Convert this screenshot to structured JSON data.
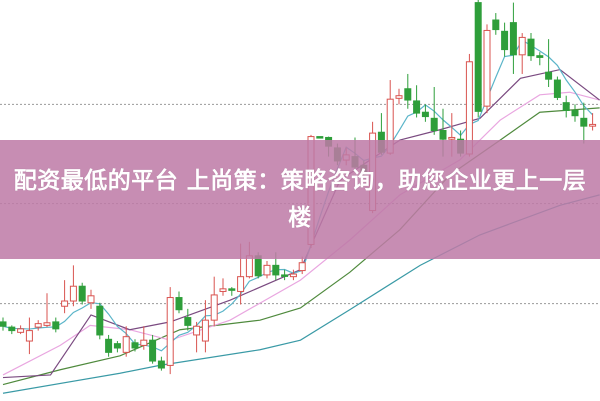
{
  "headline": "配资最低的平台 上尚策：策略咨询，助您企业更上一层楼",
  "chart_data": {
    "type": "candlestick",
    "ylim": [
      0,
      460
    ],
    "grid": "horizontal dotted",
    "colors": {
      "up": "#d9534f",
      "down": "#2e9e3a",
      "grid": "#9a9a9a",
      "banner": "#be7aa6",
      "ma5": "#5bb5c9",
      "ma10": "#7a4a80",
      "ma20": "#e9a6e0",
      "ma30": "#4f8a3d",
      "ma60": "#3a9aa6"
    },
    "candles_ochl": [
      [
        90,
        85,
        95,
        80
      ],
      [
        84,
        80,
        86,
        76
      ],
      [
        78,
        82,
        86,
        76
      ],
      [
        68,
        80,
        95,
        53
      ],
      [
        84,
        88,
        92,
        80
      ],
      [
        86,
        89,
        123,
        84
      ],
      [
        90,
        82,
        95,
        78
      ],
      [
        108,
        114,
        138,
        100
      ],
      [
        114,
        131,
        155,
        108
      ],
      [
        131,
        114,
        135,
        110
      ],
      [
        112,
        120,
        127,
        105
      ],
      [
        108,
        75,
        112,
        70
      ],
      [
        70,
        55,
        75,
        50
      ],
      [
        65,
        60,
        68,
        55
      ],
      [
        55,
        73,
        85,
        50
      ],
      [
        66,
        60,
        70,
        56
      ],
      [
        63,
        69,
        85,
        58
      ],
      [
        69,
        45,
        75,
        42
      ],
      [
        45,
        37,
        50,
        34
      ],
      [
        40,
        118,
        130,
        30
      ],
      [
        118,
        104,
        125,
        100
      ],
      [
        95,
        86,
        105,
        80
      ],
      [
        75,
        85,
        90,
        55
      ],
      [
        68,
        92,
        115,
        55
      ],
      [
        92,
        121,
        142,
        85
      ],
      [
        125,
        128,
        140,
        120
      ],
      [
        128,
        127,
        130,
        120
      ],
      [
        125,
        142,
        180,
        110
      ],
      [
        142,
        166,
        182,
        140
      ],
      [
        166,
        143,
        170,
        140
      ],
      [
        144,
        155,
        160,
        140
      ],
      [
        155,
        144,
        170,
        138
      ],
      [
        144,
        143,
        150,
        138
      ],
      [
        142,
        145,
        150,
        138
      ],
      [
        149,
        158,
        165,
        145
      ],
      [
        179,
        303,
        305,
        175
      ],
      [
        303,
        302,
        303,
        302
      ],
      [
        302,
        292,
        303,
        280
      ],
      [
        290,
        275,
        295,
        270
      ],
      [
        276,
        282,
        290,
        270
      ],
      [
        280,
        268,
        302,
        265
      ],
      [
        270,
        260,
        275,
        255
      ],
      [
        218,
        307,
        320,
        215
      ],
      [
        308,
        285,
        330,
        282
      ],
      [
        284,
        346,
        368,
        282
      ],
      [
        347,
        350,
        358,
        340
      ],
      [
        358,
        345,
        375,
        335
      ],
      [
        344,
        330,
        362,
        325
      ],
      [
        331,
        326,
        340,
        320
      ],
      [
        324,
        310,
        360,
        305
      ],
      [
        310,
        300,
        335,
        280
      ],
      [
        300,
        302,
        330,
        280
      ],
      [
        300,
        284,
        310,
        280
      ],
      [
        283,
        389,
        398,
        280
      ],
      [
        457,
        332,
        460,
        325
      ],
      [
        338,
        425,
        432,
        330
      ],
      [
        437,
        426,
        445,
        420
      ],
      [
        424,
        403,
        434,
        395
      ],
      [
        434,
        397,
        457,
        375
      ],
      [
        397,
        417,
        422,
        375
      ],
      [
        415,
        396,
        422,
        390
      ],
      [
        396,
        394,
        400,
        385
      ],
      [
        377,
        369,
        415,
        360
      ],
      [
        368,
        348,
        372,
        345
      ],
      [
        342,
        333,
        350,
        325
      ],
      [
        333,
        327,
        340,
        320
      ],
      [
        324,
        315,
        342,
        295
      ],
      [
        315,
        317,
        330,
        310
      ]
    ],
    "moving_averages": {
      "ma10": [
        [
          0,
          26
        ],
        [
          5.4,
          29
        ],
        [
          10,
          98
        ],
        [
          14.4,
          81
        ],
        [
          19,
          90
        ],
        [
          25.8,
          115
        ],
        [
          33.8,
          150
        ],
        [
          38.3,
          253
        ],
        [
          45.1,
          299
        ],
        [
          49.7,
          311
        ],
        [
          54.2,
          324
        ],
        [
          58.8,
          370
        ],
        [
          63.3,
          380
        ],
        [
          67.8,
          345
        ]
      ],
      "ma20": [
        [
          0,
          29
        ],
        [
          6.5,
          63
        ],
        [
          9.9,
          86
        ],
        [
          14.4,
          81
        ],
        [
          19,
          69
        ],
        [
          25.8,
          92
        ],
        [
          33.8,
          138
        ],
        [
          39.4,
          184
        ],
        [
          45.1,
          236
        ],
        [
          51.9,
          276
        ],
        [
          56.5,
          322
        ],
        [
          61,
          351
        ],
        [
          64.4,
          354
        ],
        [
          67.8,
          345
        ]
      ],
      "ma30": [
        [
          0,
          18
        ],
        [
          6.5,
          35
        ],
        [
          13.3,
          51
        ],
        [
          20.1,
          81
        ],
        [
          29.2,
          92
        ],
        [
          33.8,
          106
        ],
        [
          39.4,
          147
        ],
        [
          45.1,
          196
        ],
        [
          50.8,
          259
        ],
        [
          56.5,
          299
        ],
        [
          61,
          331
        ],
        [
          67.8,
          336
        ]
      ],
      "ma60": [
        [
          0,
          8
        ],
        [
          13.3,
          31
        ],
        [
          17.8,
          40
        ],
        [
          29.2,
          58
        ],
        [
          33.8,
          69
        ],
        [
          39.4,
          104
        ],
        [
          47.4,
          155
        ],
        [
          54.2,
          190
        ],
        [
          63.3,
          224
        ],
        [
          67.8,
          236
        ]
      ]
    },
    "gridlines": [
      340,
      226,
      111
    ]
  }
}
